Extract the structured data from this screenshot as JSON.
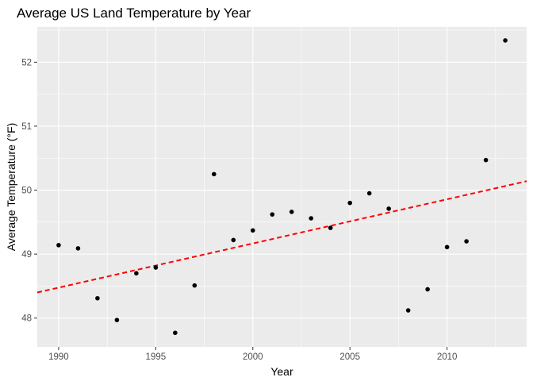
{
  "chart_data": {
    "type": "scatter",
    "title": "Average US Land Temperature by Year",
    "xlabel": "Year",
    "ylabel": "Average Temperature (°F)",
    "xlim": [
      1988.9,
      2014.1
    ],
    "ylim": [
      47.55,
      52.55
    ],
    "x_ticks": [
      1990,
      1995,
      2000,
      2005,
      2010
    ],
    "x_tick_labels": [
      "1990",
      "1995",
      "2000",
      "2005",
      "2010"
    ],
    "y_ticks": [
      48,
      49,
      50,
      51,
      52
    ],
    "y_tick_labels": [
      "48",
      "49",
      "50",
      "51",
      "52"
    ],
    "grid": true,
    "background": "#ebebeb",
    "point_color": "#000000",
    "trend_color": "#ff0000",
    "series": [
      {
        "x": [
          1990,
          1991,
          1992,
          1993,
          1994,
          1995,
          1996,
          1997,
          1998,
          1999,
          2000,
          2001,
          2002,
          2003,
          2004,
          2005,
          2006,
          2007,
          2008,
          2009,
          2010,
          2011,
          2012,
          2013
        ],
        "y": [
          49.14,
          49.09,
          48.31,
          47.97,
          48.7,
          48.79,
          47.77,
          48.51,
          50.25,
          49.22,
          49.37,
          49.62,
          49.66,
          49.56,
          49.41,
          49.8,
          49.95,
          49.71,
          48.12,
          48.45,
          49.11,
          49.2,
          50.47,
          52.34
        ]
      }
    ],
    "trend_line": {
      "x": [
        1988.9,
        2014.1
      ],
      "y": [
        48.4,
        50.14
      ]
    }
  }
}
